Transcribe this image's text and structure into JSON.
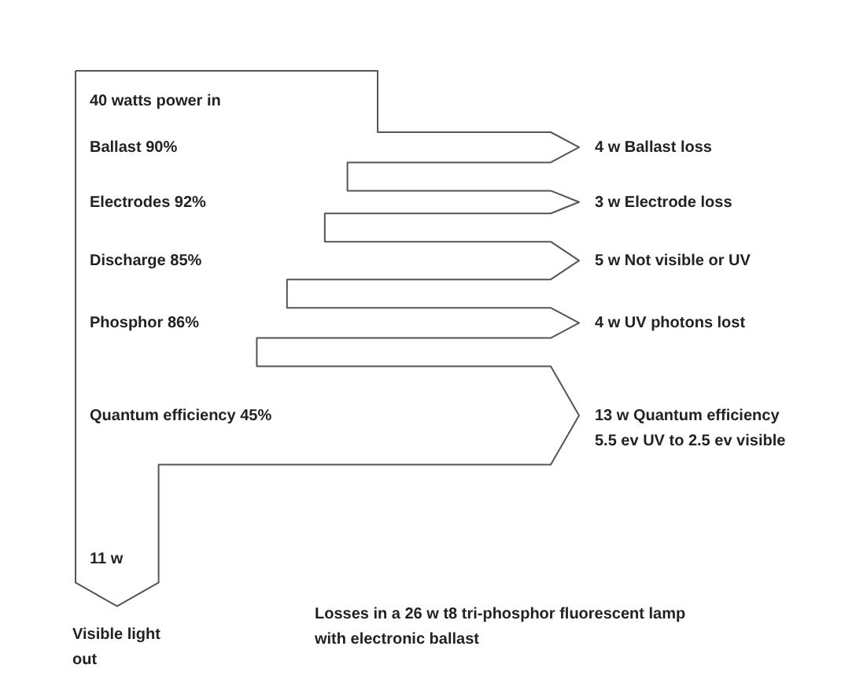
{
  "chart_data": {
    "type": "other",
    "categories": [
      "Ballast 90%",
      "Electrodes 92%",
      "Discharge 85%",
      "Phosphor 86%",
      "Quantum efficiency 45%",
      "Visible light\nout"
    ],
    "values": [
      4,
      3,
      5,
      4,
      13,
      11
    ],
    "value_labels": [
      "4 w Ballast loss",
      "3 w Electrode loss",
      "5 w Not visible or UV",
      "4 w UV photons lost",
      "13 w Quantum efficiency\n5.5 ev UV to 2.5 ev visible",
      "11 w"
    ],
    "annotations": [
      "40 watts power in",
      "Losses in a 26 w t8 tri-phosphor fluorescent lamp\nwith electronic ballast"
    ]
  }
}
